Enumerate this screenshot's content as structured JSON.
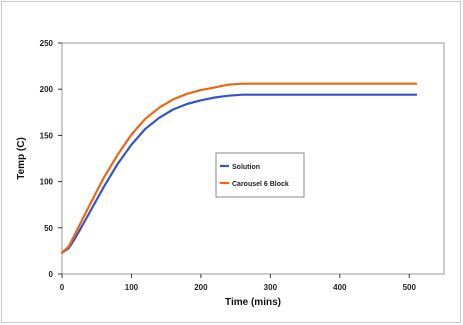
{
  "chart_data": {
    "type": "line",
    "title": "",
    "xlabel": "Time (mins)",
    "ylabel": "Temp (C)",
    "xlim": [
      0,
      550
    ],
    "ylim": [
      0,
      250
    ],
    "x_ticks": [
      0,
      100,
      200,
      300,
      400,
      500
    ],
    "y_ticks": [
      0,
      50,
      100,
      150,
      200,
      250
    ],
    "grid": false,
    "legend_position": "center-right",
    "series": [
      {
        "name": "Solution",
        "color": "#3355cc",
        "x": [
          0,
          10,
          20,
          40,
          60,
          80,
          100,
          120,
          140,
          160,
          180,
          200,
          220,
          240,
          260,
          300,
          350,
          400,
          450,
          510
        ],
        "y": [
          23,
          28,
          40,
          67,
          94,
          119,
          140,
          157,
          169,
          178,
          184,
          188,
          191,
          193,
          194,
          194,
          194,
          194,
          194,
          194
        ]
      },
      {
        "name": "Carousel 6 Block",
        "color": "#ee6611",
        "x": [
          0,
          10,
          20,
          40,
          60,
          80,
          100,
          120,
          140,
          160,
          180,
          200,
          220,
          240,
          260,
          300,
          350,
          400,
          450,
          510
        ],
        "y": [
          23,
          30,
          45,
          75,
          104,
          129,
          151,
          168,
          180,
          189,
          195,
          199,
          202,
          205,
          206,
          206,
          206,
          206,
          206,
          206
        ]
      }
    ]
  }
}
